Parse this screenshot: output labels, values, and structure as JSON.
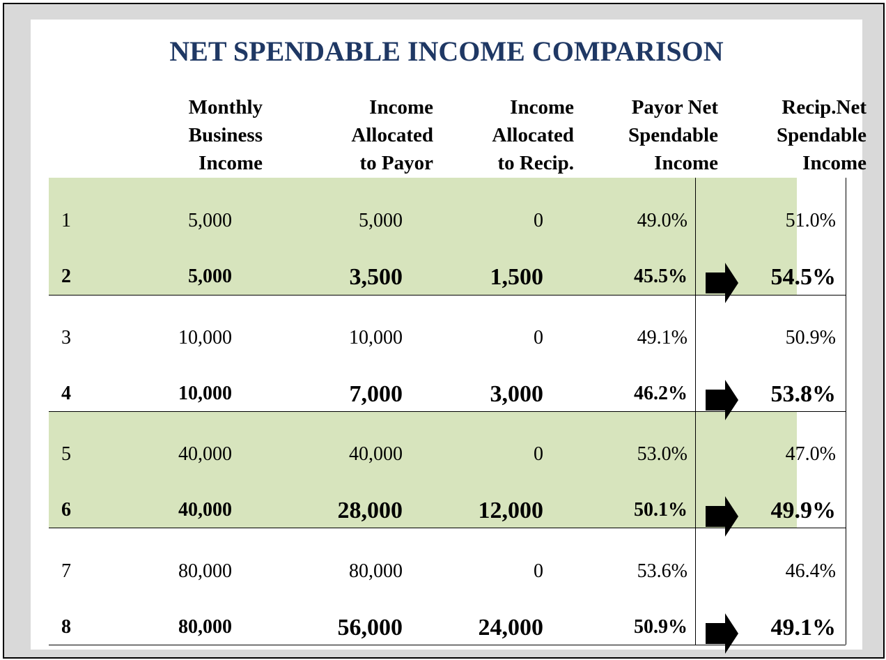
{
  "title": "NET SPENDABLE INCOME COMPARISON",
  "table": {
    "headers": [
      [
        "Monthly",
        "Business",
        "Income"
      ],
      [
        "Income",
        "Allocated",
        "to Payor"
      ],
      [
        "Income",
        "Allocated",
        "to Recip."
      ],
      [
        "Payor Net",
        "Spendable",
        "Income"
      ],
      [
        "Recip.Net",
        "Spendable",
        "Income"
      ]
    ],
    "rows": [
      [
        "1",
        "5,000",
        "5,000",
        "0",
        "49.0%",
        "51.0%"
      ],
      [
        "2",
        "5,000",
        "3,500",
        "1,500",
        "45.5%",
        "54.5%"
      ],
      [
        "3",
        "10,000",
        "10,000",
        "0",
        "49.1%",
        "50.9%"
      ],
      [
        "4",
        "10,000",
        "7,000",
        "3,000",
        "46.2%",
        "53.8%"
      ],
      [
        "5",
        "40,000",
        "40,000",
        "0",
        "53.0%",
        "47.0%"
      ],
      [
        "6",
        "40,000",
        "28,000",
        "12,000",
        "50.1%",
        "49.9%"
      ],
      [
        "7",
        "80,000",
        "80,000",
        "0",
        "53.6%",
        "46.4%"
      ],
      [
        "8",
        "80,000",
        "56,000",
        "24,000",
        "50.9%",
        "49.1%"
      ]
    ]
  }
}
